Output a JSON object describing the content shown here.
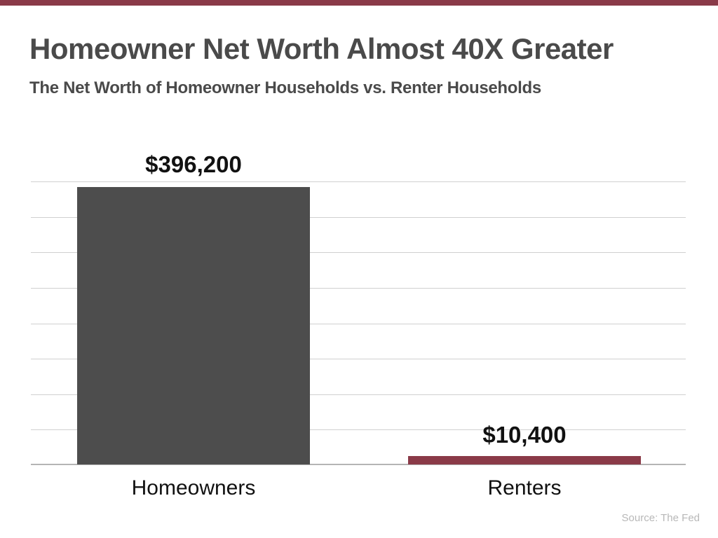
{
  "header": {
    "title": "Homeowner Net Worth Almost 40X Greater",
    "subtitle": "The Net Worth of Homeowner Households vs. Renter Households"
  },
  "colors": {
    "accent": "#8a3a48",
    "homeowners_bar": "#4d4d4d",
    "renters_bar": "#8a3a48",
    "text": "#4a4a4a"
  },
  "bars": [
    {
      "label": "Homeowners",
      "value_label": "$396,200"
    },
    {
      "label": "Renters",
      "value_label": "$10,400"
    }
  ],
  "footer": {
    "source": "Source: The Fed"
  },
  "chart_data": {
    "type": "bar",
    "title": "Homeowner Net Worth Almost 40X Greater",
    "subtitle": "The Net Worth of Homeowner Households vs. Renter Households",
    "categories": [
      "Homeowners",
      "Renters"
    ],
    "values": [
      396200,
      10400
    ],
    "data_labels": [
      "$396,200",
      "$10,400"
    ],
    "colors": [
      "#4d4d4d",
      "#8a3a48"
    ],
    "xlabel": "",
    "ylabel": "",
    "ylim": [
      0,
      400000
    ],
    "grid": true,
    "gridlines": 8,
    "y_axis_labels_visible": false,
    "legend": "none",
    "source": "Source: The Fed"
  }
}
